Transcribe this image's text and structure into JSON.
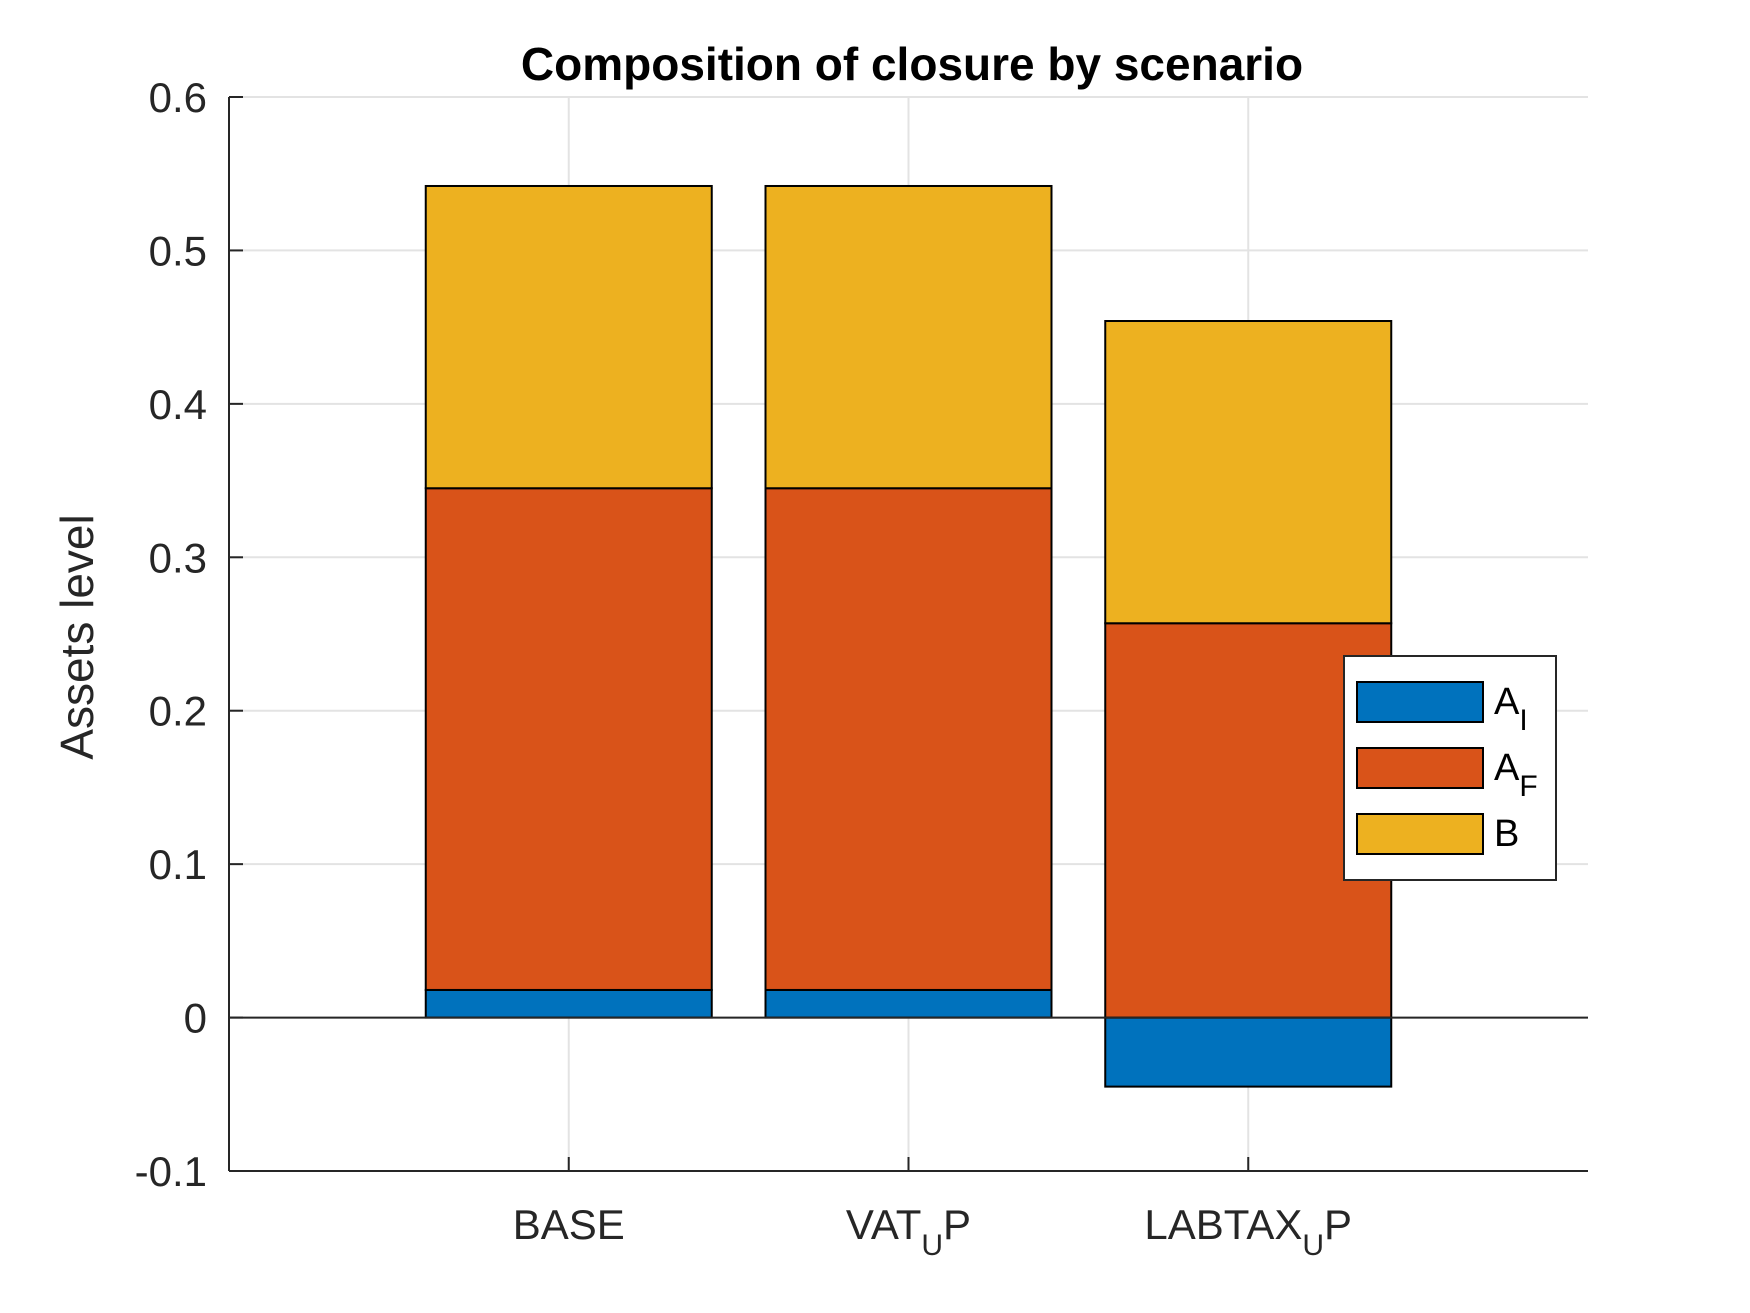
{
  "chart_data": {
    "type": "bar",
    "stacked": true,
    "title": "Composition of closure by scenario",
    "xlabel": "",
    "ylabel": "Assets level",
    "ylim": [
      -0.1,
      0.6
    ],
    "yticks": [
      "-0.1",
      "0",
      "0.1",
      "0.2",
      "0.3",
      "0.4",
      "0.5",
      "0.6"
    ],
    "categories": [
      {
        "main": "BASE",
        "sub": "",
        "tail": ""
      },
      {
        "main": "VAT",
        "sub": "U",
        "tail": "P"
      },
      {
        "main": "LABTAX",
        "sub": "U",
        "tail": "P"
      }
    ],
    "series": [
      {
        "name": "A",
        "sub": "I",
        "color": "#0072BD",
        "values": [
          0.018,
          0.018,
          -0.045
        ]
      },
      {
        "name": "A",
        "sub": "F",
        "color": "#D95319",
        "values": [
          0.327,
          0.327,
          0.257
        ]
      },
      {
        "name": "B",
        "sub": "",
        "color": "#EDB120",
        "values": [
          0.197,
          0.197,
          0.197
        ]
      }
    ],
    "grid": true,
    "legend_position": "east-inside"
  }
}
